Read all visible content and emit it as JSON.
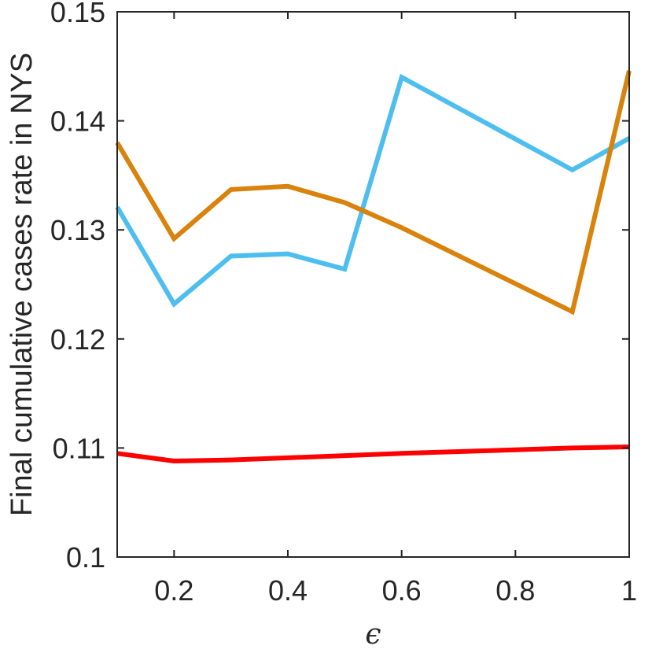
{
  "chart_data": {
    "type": "line",
    "xlabel": "ϵ",
    "ylabel": "Final cumulative cases rate in NYS",
    "xlim": [
      0.1,
      1.0
    ],
    "ylim": [
      0.1,
      0.15
    ],
    "xticks": [
      0.2,
      0.4,
      0.6,
      0.8,
      1.0
    ],
    "xtick_labels": [
      "0.2",
      "0.4",
      "0.6",
      "0.8",
      "1"
    ],
    "yticks": [
      0.1,
      0.11,
      0.12,
      0.13,
      0.14,
      0.15
    ],
    "ytick_labels": [
      "0.1",
      "0.11",
      "0.12",
      "0.13",
      "0.14",
      "0.15"
    ],
    "grid": false,
    "x": [
      0.1,
      0.2,
      0.3,
      0.4,
      0.5,
      0.6,
      0.9,
      1.0
    ],
    "series": [
      {
        "color": "#4DBEEE",
        "values": [
          0.1321,
          0.1232,
          0.1276,
          0.1278,
          0.1264,
          0.144,
          0.1355,
          0.1384
        ]
      },
      {
        "color": "#D9820C",
        "values": [
          0.138,
          0.1292,
          0.1337,
          0.134,
          0.1325,
          0.1302,
          0.1225,
          0.1446
        ]
      },
      {
        "color": "#FF0000",
        "values": [
          0.1095,
          0.1088,
          0.1089,
          0.1091,
          0.1093,
          0.1095,
          0.11,
          0.1101
        ]
      }
    ]
  }
}
